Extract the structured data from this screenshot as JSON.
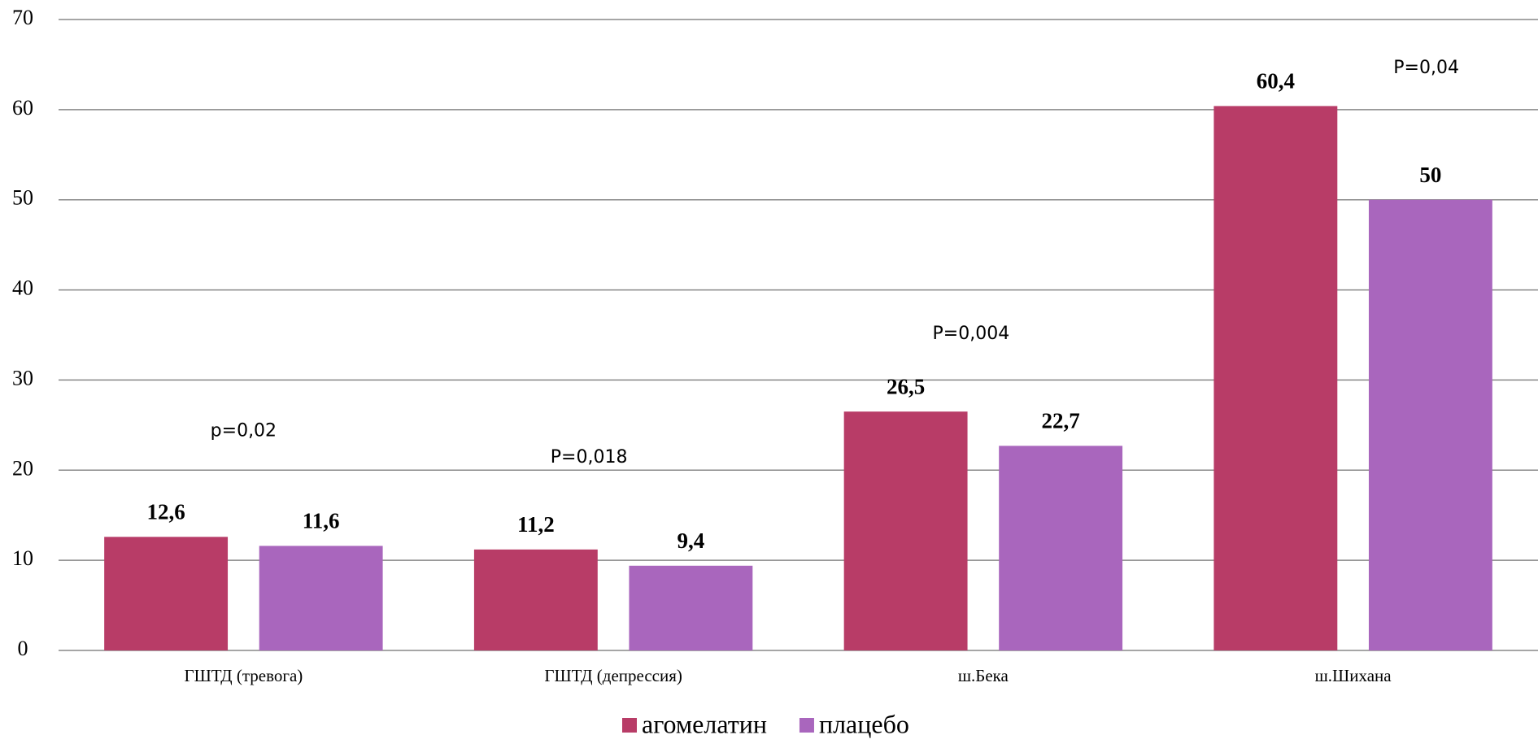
{
  "chart_data": {
    "type": "bar",
    "categories": [
      "ГШТД (тревога)",
      "ГШТД (депрессия)",
      "ш.Бека",
      "ш.Шихана"
    ],
    "series": [
      {
        "name": "агомелатин",
        "color": "#b83c67",
        "values": [
          12.6,
          11.2,
          26.5,
          60.4
        ],
        "value_labels": [
          "12,6",
          "11,2",
          "26,5",
          "60,4"
        ]
      },
      {
        "name": "плацебо",
        "color": "#a966bd",
        "values": [
          11.6,
          9.4,
          22.7,
          50
        ],
        "value_labels": [
          "11,6",
          "9,4",
          "22,7",
          "50"
        ]
      }
    ],
    "annotations": [
      "p=0,02",
      "P=0,018",
      "P=0,004",
      "P=0,04"
    ],
    "ylim": [
      0,
      70
    ],
    "yticks": [
      0,
      10,
      20,
      30,
      40,
      50,
      60,
      70
    ],
    "grid": true,
    "legend": "bottom"
  }
}
